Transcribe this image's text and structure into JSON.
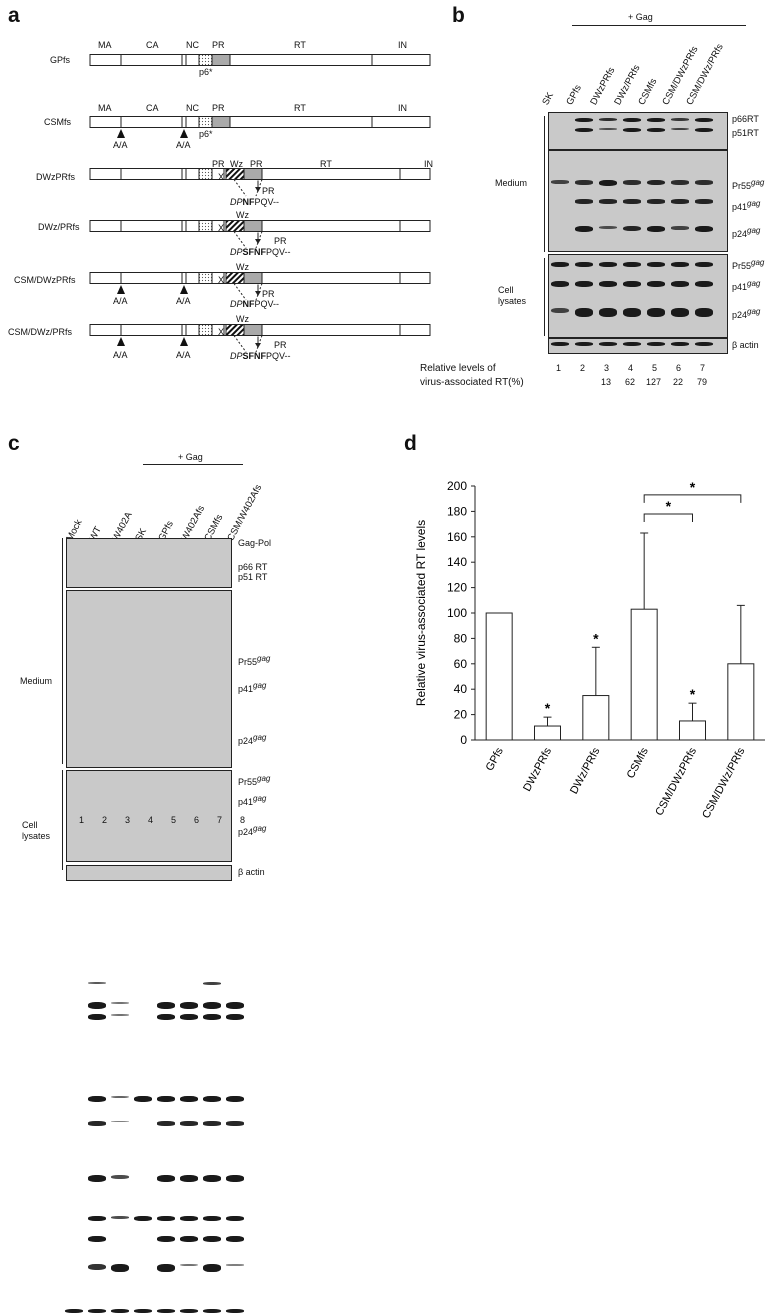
{
  "panels": {
    "a": "a",
    "b": "b",
    "c": "c",
    "d": "d"
  },
  "panel_a": {
    "domains": [
      "MA",
      "CA",
      "NC",
      "PR",
      "RT",
      "IN"
    ],
    "p6_label": "p6*",
    "aa_label": "A/A",
    "wz_label": "Wz",
    "x_label": "X",
    "pr_label": "PR",
    "constructs": [
      {
        "name": "GPfs"
      },
      {
        "name": "CSMfs"
      },
      {
        "name": "DWzPRfs",
        "seq_italic": "DP",
        "seq_bold": "NF",
        "seq_rest": "PQV--"
      },
      {
        "name": "DWz/PRfs",
        "seq_italic": "DP",
        "seq_bold": "SFNF",
        "seq_rest": "PQV--"
      },
      {
        "name": "CSM/DWzPRfs",
        "seq_italic": "DP",
        "seq_bold": "NF",
        "seq_rest": "PQV--"
      },
      {
        "name": "CSM/DWz/PRfs",
        "seq_italic": "DP",
        "seq_bold": "SFNF",
        "seq_rest": "PQV--"
      }
    ]
  },
  "panel_b": {
    "header": "+ Gag",
    "lanes": [
      "SK",
      "GPfs",
      "DWzPRfs",
      "DWz/PRfs",
      "CSMfs",
      "CSM/DWzPRfs",
      "CSM/DWz/PRfs"
    ],
    "group_medium": "Medium",
    "group_cell": "Cell lysates",
    "right_labels": {
      "p66": "p66RT",
      "p51": "p51RT",
      "pr55": "Pr55",
      "p41": "p41",
      "p24": "p24",
      "gag": "gag",
      "actin": "β actin"
    },
    "lane_numbers": [
      "1",
      "2",
      "3",
      "4",
      "5",
      "6",
      "7"
    ],
    "rt_caption_line1": "Relative levels of",
    "rt_caption_line2": "virus-associated RT(%)",
    "rt_values": [
      "13",
      "62",
      "127",
      "22",
      "79"
    ]
  },
  "panel_c": {
    "header": "+ Gag",
    "lanes": [
      "Mock",
      "WT",
      "W402A",
      "SK",
      "GPfs",
      "W402Afs",
      "CSMfs",
      "CSM/W402Afs"
    ],
    "group_medium": "Medium",
    "group_cell": "Cell lysates",
    "right_labels": {
      "gagpol": "Gag-Pol",
      "p66": "p66 RT",
      "p51": "p51 RT",
      "pr55": "Pr55",
      "p41": "p41",
      "p24": "p24",
      "gag": "gag",
      "actin": "β actin"
    },
    "lane_numbers": [
      "1",
      "2",
      "3",
      "4",
      "5",
      "6",
      "7",
      "8"
    ]
  },
  "chart_data": {
    "type": "bar",
    "categories": [
      "GPfs",
      "DWzPRfs",
      "DWz/PRfs",
      "CSMfs",
      "CSM/DWzPRfs",
      "CSM/DWz/PRfs"
    ],
    "values": [
      100,
      11,
      35,
      103,
      15,
      60
    ],
    "errors": [
      0,
      7,
      38,
      60,
      14,
      46
    ],
    "significant": [
      false,
      true,
      true,
      false,
      true,
      false
    ],
    "brackets": [
      {
        "from": "CSMfs",
        "to": "CSM/DWzPRfs",
        "label": "*"
      },
      {
        "from": "CSMfs",
        "to": "CSM/DWz/PRfs",
        "label": "*"
      }
    ],
    "ylabel": "Relative virus-associated RT levels",
    "ylim": [
      0,
      200
    ],
    "yticks": [
      0,
      20,
      40,
      60,
      80,
      100,
      120,
      140,
      160,
      180,
      200
    ],
    "star": "*"
  }
}
